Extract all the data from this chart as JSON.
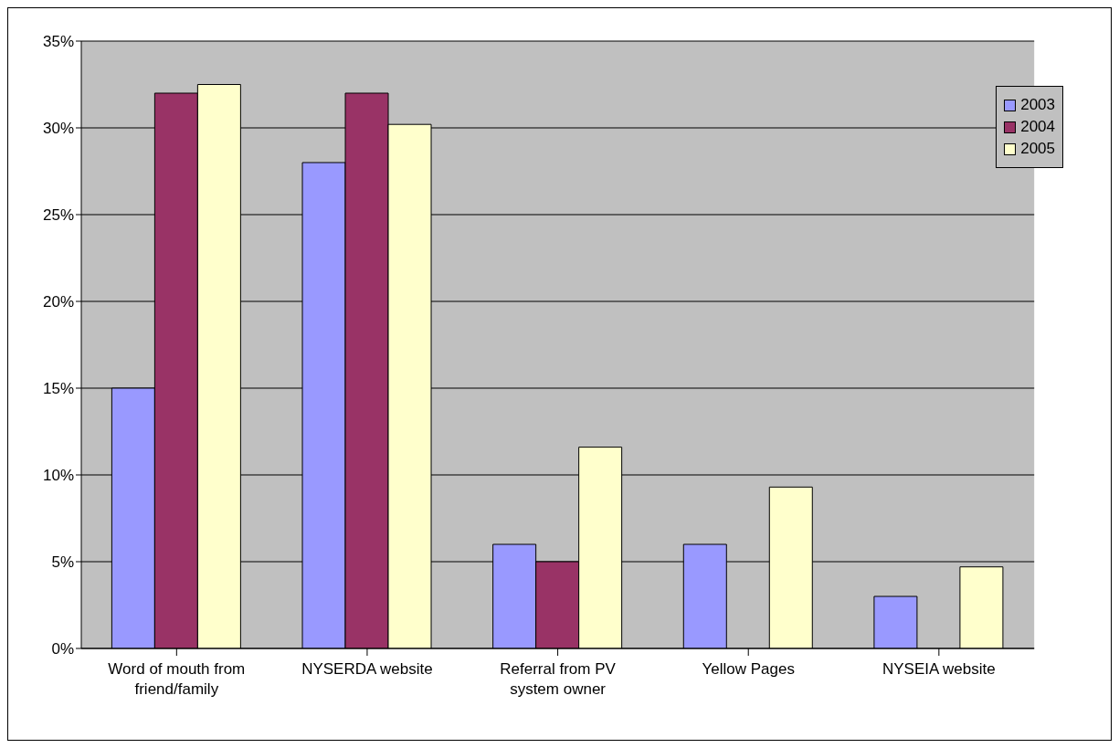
{
  "chart_data": {
    "type": "bar",
    "categories": [
      "Word of mouth from friend/family",
      "NYSERDA website",
      "Referral from PV system owner",
      "Yellow Pages",
      "NYSEIA website"
    ],
    "series": [
      {
        "name": "2003",
        "color": "#9999ff",
        "values": [
          15,
          28,
          6,
          6,
          3
        ]
      },
      {
        "name": "2004",
        "color": "#993366",
        "values": [
          32,
          32,
          5,
          null,
          null
        ]
      },
      {
        "name": "2005",
        "color": "#ffffcc",
        "values": [
          32.5,
          30.2,
          11.6,
          9.3,
          4.7
        ]
      }
    ],
    "ylim": [
      0,
      35
    ],
    "yticks": [
      {
        "value": 0,
        "label": "0%"
      },
      {
        "value": 5,
        "label": "5%"
      },
      {
        "value": 10,
        "label": "10%"
      },
      {
        "value": 15,
        "label": "15%"
      },
      {
        "value": 20,
        "label": "20%"
      },
      {
        "value": 25,
        "label": "25%"
      },
      {
        "value": 30,
        "label": "30%"
      },
      {
        "value": 35,
        "label": "35%"
      }
    ],
    "grid": "y",
    "legend": "top right"
  }
}
